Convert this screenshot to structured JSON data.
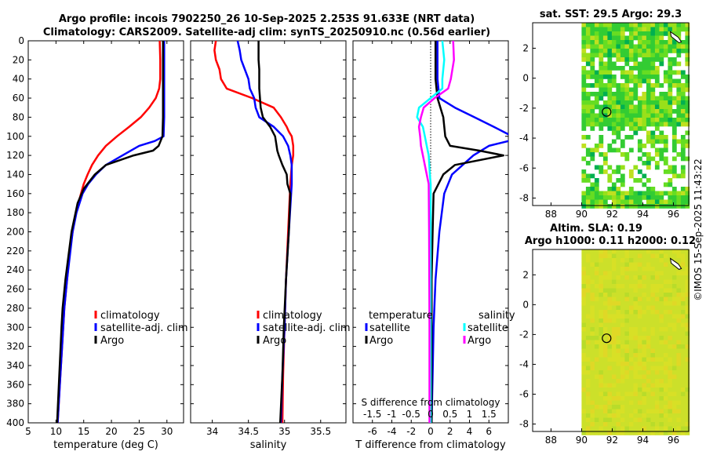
{
  "header": {
    "title_line1": "Argo profile: incois 7902250_26 10-Sep-2025 2.253S 91.633E (NRT data)",
    "title_line2": "Climatology: CARS2009. Satellite-adj clim: synTS_20250910.nc (0.56d earlier)",
    "credit": "©IMOS 15-Sep-2025 11:43:22"
  },
  "colors": {
    "climatology": "#ff0000",
    "satellite_adj": "#0000ff",
    "argo": "#000000",
    "satellite_salinity": "#00ffff",
    "argo_salinity": "#ff00ff",
    "zero_line": "#000000"
  },
  "chart_data": [
    {
      "type": "line",
      "id": "temperature",
      "xlabel": "temperature (deg C)",
      "ylabel": "",
      "xlim": [
        5,
        33
      ],
      "ylim": [
        400,
        0
      ],
      "xticks": [
        5,
        10,
        15,
        20,
        25,
        30
      ],
      "yticks": [
        0,
        20,
        40,
        60,
        80,
        100,
        120,
        140,
        160,
        180,
        200,
        220,
        240,
        260,
        280,
        300,
        320,
        340,
        360,
        380,
        400
      ],
      "legend": [
        "climatology",
        "satellite-adj. clim",
        "Argo"
      ],
      "series": [
        {
          "name": "climatology",
          "depth": [
            0,
            20,
            40,
            50,
            60,
            70,
            80,
            90,
            100,
            110,
            120,
            130,
            140,
            150,
            160,
            180,
            200,
            220,
            250,
            280,
            300,
            350,
            400
          ],
          "values": [
            28.7,
            28.8,
            28.8,
            28.6,
            28.0,
            26.8,
            25.3,
            23.2,
            21.0,
            19.0,
            17.6,
            16.5,
            15.7,
            15.0,
            14.5,
            13.6,
            13.0,
            12.5,
            12.0,
            11.5,
            11.3,
            10.8,
            10.3
          ]
        },
        {
          "name": "satellite-adj. clim",
          "depth": [
            0,
            20,
            40,
            60,
            80,
            100,
            105,
            110,
            120,
            130,
            140,
            150,
            160,
            180,
            200,
            250,
            280,
            300,
            350,
            400
          ],
          "values": [
            29.5,
            29.5,
            29.5,
            29.5,
            29.5,
            29.4,
            27.8,
            25.0,
            22.0,
            19.0,
            17.2,
            15.8,
            14.8,
            13.7,
            13.0,
            12.0,
            11.5,
            11.3,
            10.8,
            10.3
          ]
        },
        {
          "name": "Argo",
          "depth": [
            0,
            20,
            40,
            60,
            80,
            100,
            110,
            115,
            120,
            130,
            140,
            155,
            170,
            200,
            250,
            280,
            300,
            350,
            400
          ],
          "values": [
            29.3,
            29.3,
            29.3,
            29.3,
            29.3,
            29.2,
            28.5,
            27.5,
            24.0,
            19.0,
            17.0,
            15.0,
            13.9,
            12.8,
            11.7,
            11.2,
            11.0,
            10.6,
            10.2
          ]
        }
      ]
    },
    {
      "type": "line",
      "id": "salinity",
      "xlabel": "salinity",
      "ylabel": "",
      "xlim": [
        33.7,
        35.85
      ],
      "ylim": [
        400,
        0
      ],
      "xticks": [
        34,
        34.5,
        35,
        35.5
      ],
      "legend": [
        "climatology",
        "satellite-adj. clim",
        "Argo"
      ],
      "series": [
        {
          "name": "climatology",
          "depth": [
            0,
            10,
            20,
            30,
            40,
            50,
            60,
            70,
            80,
            90,
            95,
            100,
            110,
            120,
            130,
            150,
            200,
            250,
            300,
            350,
            400
          ],
          "values": [
            34.05,
            34.03,
            34.05,
            34.1,
            34.12,
            34.2,
            34.55,
            34.85,
            34.95,
            35.03,
            35.06,
            35.1,
            35.12,
            35.12,
            35.1,
            35.08,
            35.05,
            35.02,
            35.0,
            34.98,
            34.97
          ]
        },
        {
          "name": "satellite-adj. clim",
          "depth": [
            0,
            10,
            20,
            30,
            40,
            50,
            60,
            70,
            80,
            90,
            100,
            110,
            120,
            130,
            150,
            200,
            250,
            300,
            350,
            400
          ],
          "values": [
            34.35,
            34.38,
            34.4,
            34.45,
            34.5,
            34.52,
            34.58,
            34.6,
            34.65,
            34.85,
            34.98,
            35.05,
            35.08,
            35.1,
            35.1,
            35.06,
            35.02,
            35.0,
            34.97,
            34.95
          ]
        },
        {
          "name": "Argo",
          "depth": [
            0,
            10,
            20,
            30,
            40,
            50,
            60,
            70,
            80,
            90,
            100,
            110,
            115,
            120,
            130,
            140,
            150,
            160,
            200,
            250,
            300,
            350,
            400
          ],
          "values": [
            34.64,
            34.64,
            34.64,
            34.65,
            34.65,
            34.65,
            34.66,
            34.67,
            34.7,
            34.8,
            34.87,
            34.89,
            34.9,
            34.92,
            34.97,
            35.03,
            35.04,
            35.08,
            35.06,
            35.02,
            34.99,
            34.97,
            34.94
          ]
        }
      ]
    },
    {
      "type": "line",
      "id": "difference",
      "xlabel": "T difference from climatology",
      "xlabel_top": "S difference from climatology",
      "xlim": [
        -8,
        8
      ],
      "ylim": [
        400,
        0
      ],
      "xticks": [
        -6,
        -4,
        -2,
        0,
        2,
        4,
        6
      ],
      "xticks_top": [
        -1.5,
        -1,
        -0.5,
        0,
        0.5,
        1,
        1.5
      ],
      "legend_titles": [
        "temperature",
        "salinity"
      ],
      "legend": [
        "satellite",
        "Argo",
        "satellite",
        "Argo"
      ],
      "series": [
        {
          "name": "temperature satellite",
          "depth": [
            0,
            20,
            40,
            60,
            70,
            80,
            90,
            100,
            105,
            110,
            120,
            140,
            160,
            200,
            250,
            300,
            350,
            400
          ],
          "values": [
            0.7,
            0.7,
            0.7,
            0.9,
            2.5,
            4.5,
            6.5,
            8.4,
            8.0,
            6.0,
            4.4,
            2.2,
            1.4,
            0.9,
            0.5,
            0.3,
            0.2,
            0.1
          ]
        },
        {
          "name": "temperature Argo",
          "depth": [
            0,
            20,
            40,
            60,
            80,
            100,
            110,
            115,
            120,
            130,
            140,
            150,
            160,
            200,
            250,
            300,
            350,
            400
          ],
          "values": [
            0.5,
            0.5,
            0.5,
            0.7,
            1.3,
            1.5,
            2.0,
            5.0,
            7.5,
            2.5,
            1.3,
            0.8,
            0.3,
            0.2,
            0.1,
            0.1,
            0.1,
            0.1
          ]
        },
        {
          "name": "salinity satellite",
          "depth": [
            0,
            20,
            40,
            50,
            60,
            70,
            80,
            90,
            100,
            110,
            120,
            140,
            150,
            200,
            300,
            400
          ],
          "values": [
            0.3,
            0.35,
            0.3,
            0.3,
            0.0,
            -0.3,
            -0.35,
            -0.2,
            -0.15,
            -0.1,
            -0.05,
            -0.02,
            0.0,
            0.0,
            0.0,
            0.0
          ]
        },
        {
          "name": "salinity Argo",
          "depth": [
            0,
            20,
            40,
            50,
            60,
            70,
            80,
            90,
            100,
            110,
            120,
            140,
            150,
            200,
            300,
            400
          ],
          "values": [
            0.58,
            0.6,
            0.52,
            0.45,
            0.1,
            -0.18,
            -0.25,
            -0.3,
            -0.27,
            -0.25,
            -0.2,
            -0.1,
            -0.05,
            -0.04,
            -0.03,
            -0.03
          ]
        }
      ]
    },
    {
      "type": "heatmap",
      "id": "sst",
      "title": "sat. SST: 29.5 Argo: 29.3",
      "xlim": [
        86.8,
        97
      ],
      "ylim": [
        -8.5,
        3.7
      ],
      "xticks": [
        88,
        90,
        92,
        94,
        96
      ],
      "xtick_labels": [
        "88",
        "90",
        "92",
        "94",
        "96"
      ],
      "yticks": [
        2,
        0,
        -2,
        -4,
        -6,
        -8
      ],
      "data_extent_lon": [
        90,
        97
      ],
      "marker": {
        "lon": 91.633,
        "lat": -2.253
      }
    },
    {
      "type": "heatmap",
      "id": "sla",
      "title": "Altim. SLA: 0.19",
      "subtitle": "Argo h1000: 0.11 h2000: 0.12",
      "xlim": [
        86.8,
        97
      ],
      "ylim": [
        -8.5,
        3.7
      ],
      "xticks": [
        88,
        90,
        92,
        94,
        96
      ],
      "xtick_labels": [
        "88",
        "90",
        "92",
        "94",
        "96"
      ],
      "yticks": [
        2,
        0,
        -2,
        -4,
        -6,
        -8
      ],
      "data_extent_lon": [
        90,
        97
      ],
      "marker": {
        "lon": 91.633,
        "lat": -2.253
      }
    }
  ]
}
